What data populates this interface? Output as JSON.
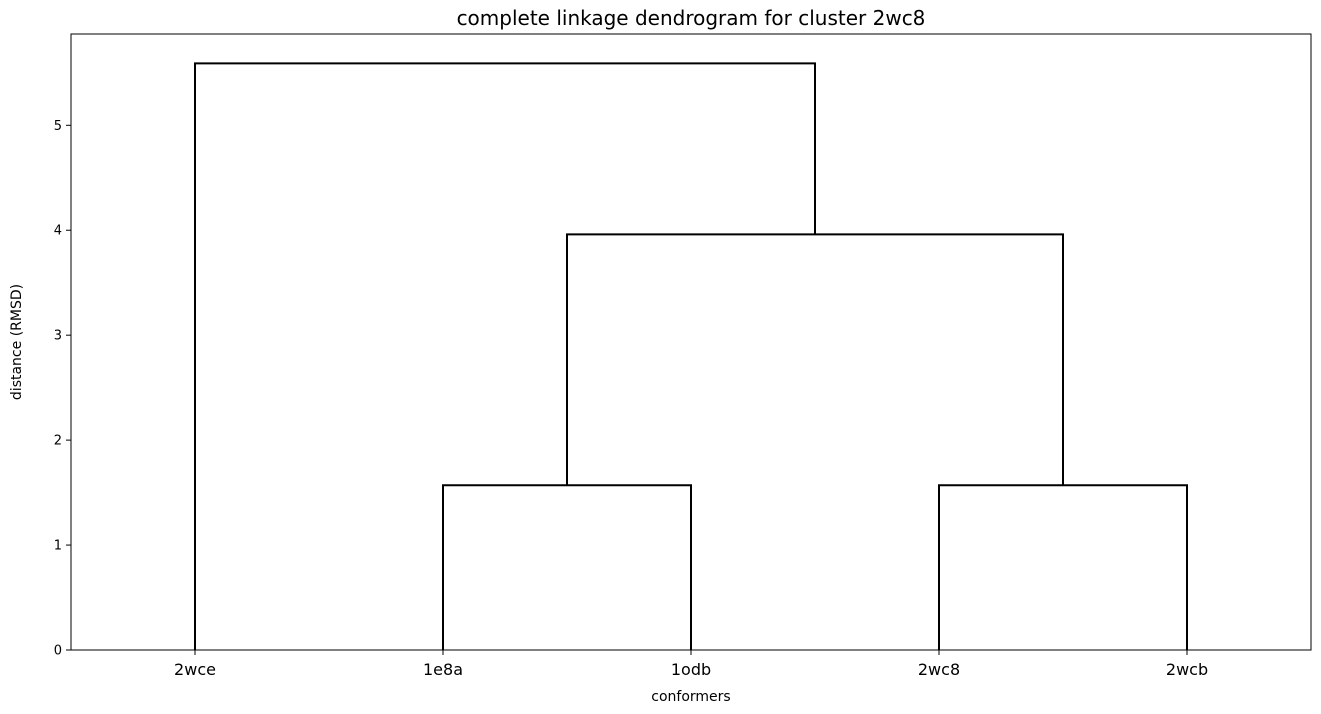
{
  "chart_data": {
    "type": "dendrogram",
    "title": "complete linkage dendrogram for cluster 2wc8",
    "xlabel": "conformers",
    "ylabel": "distance (RMSD)",
    "leaves": [
      "2wce",
      "1e8a",
      "1odb",
      "2wc8",
      "2wcb"
    ],
    "yticks": [
      0,
      1,
      2,
      3,
      4,
      5
    ],
    "ylim": [
      0,
      5.87
    ],
    "grid": false,
    "merges": [
      {
        "left": "1e8a",
        "right": "1odb",
        "height": 1.57
      },
      {
        "left": "2wc8",
        "right": "2wcb",
        "height": 1.57
      },
      {
        "left": "1e8a+1odb",
        "right": "2wc8+2wcb",
        "height": 3.96
      },
      {
        "left": "2wce",
        "right": "1e8a+1odb+2wc8+2wcb",
        "height": 5.59
      }
    ],
    "link_color": "#000000"
  }
}
